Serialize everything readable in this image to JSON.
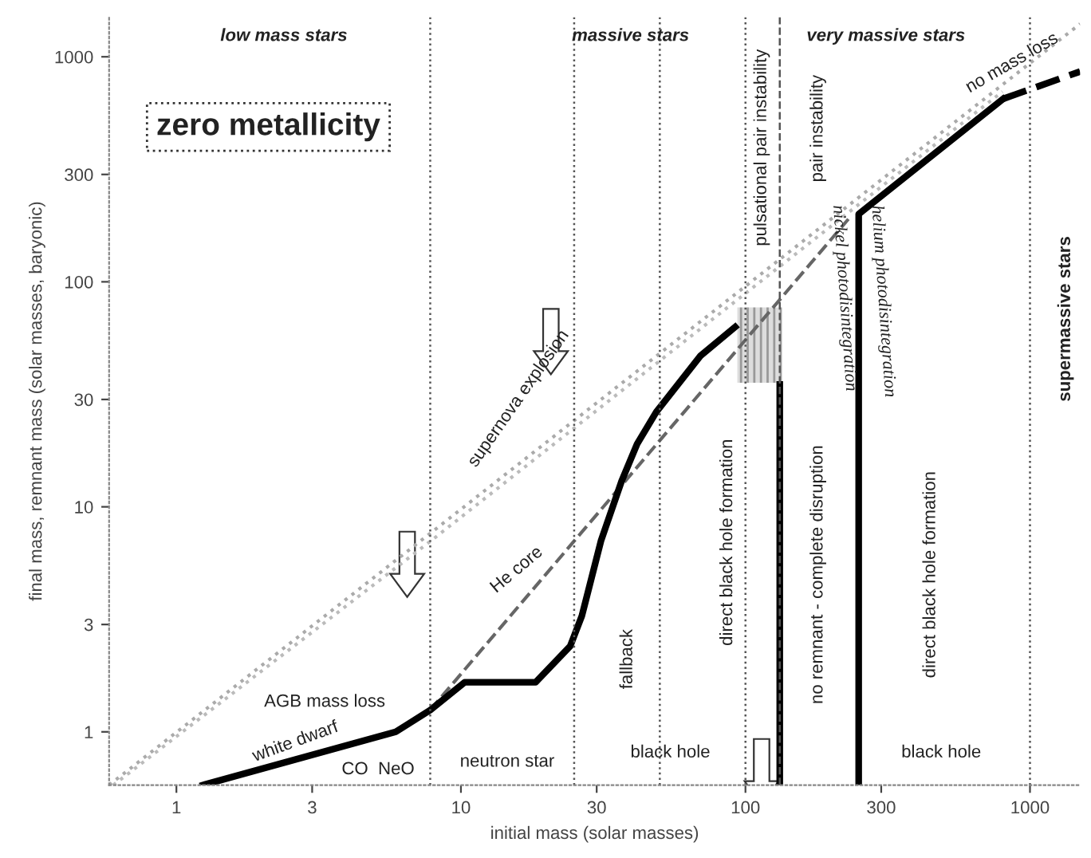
{
  "chart_data": {
    "type": "line",
    "xlabel": "initial mass (solar masses)",
    "ylabel": "final mass, remnant mass (solar masses, baryonic)",
    "log": "xy",
    "xlim": [
      0.58,
      1500
    ],
    "ylim": [
      0.58,
      1500
    ],
    "xticks": [
      1,
      3,
      10,
      30,
      100,
      300,
      1000
    ],
    "yticks": [
      1,
      3,
      10,
      30,
      100,
      300,
      1000
    ],
    "grid": false,
    "series": [
      {
        "x": [
          0.58,
          1500
        ],
        "values": [
          0.58,
          1400
        ],
        "color": "#aaaaaa",
        "line_style": "dotted"
      },
      {
        "x": [
          0.6,
          8,
          90,
          800
        ],
        "values": [
          0.58,
          7.2,
          80,
          700
        ],
        "color": "#bbbbbb",
        "line_style": "dotted"
      },
      {
        "x": [
          7.8,
          230
        ],
        "values": [
          1.25,
          190
        ],
        "color": "#666666",
        "line_style": "dashed"
      },
      {
        "x": [
          1.24,
          5.9,
          7.8,
          10.3,
          18.3,
          24.2,
          26.6,
          31.1,
          36.7,
          41.6,
          48.6,
          69.6,
          92
        ],
        "values": [
          0.58,
          1.0,
          1.25,
          1.66,
          1.66,
          2.4,
          3.27,
          7.1,
          13.0,
          19.0,
          26.4,
          47,
          63
        ],
        "color": "#000000",
        "line_style": "solid"
      },
      {
        "x": [
          132,
          132
        ],
        "values": [
          35,
          0.58
        ],
        "color": "#000000",
        "line_style": "solid"
      },
      {
        "x": [
          250,
          250,
          804
        ],
        "values": [
          0.58,
          200,
          650
        ],
        "color": "#000000",
        "line_style": "solid"
      },
      {
        "x": [
          804,
          1500
        ],
        "values": [
          650,
          860
        ],
        "color": "#000000",
        "line_style": "dashed"
      }
    ],
    "ref_lines": [
      {
        "axis": "x",
        "value": 7.8,
        "line_style": "dotted"
      },
      {
        "axis": "x",
        "value": 25,
        "line_style": "dotted"
      },
      {
        "axis": "x",
        "value": 50,
        "line_style": "dotted"
      },
      {
        "axis": "x",
        "value": 100,
        "line_style": "dotted"
      },
      {
        "axis": "x",
        "value": 132,
        "line_style": "dashed"
      },
      {
        "axis": "x",
        "value": 1000,
        "line_style": "dotted"
      }
    ],
    "annotations": [
      "low mass stars",
      "massive stars",
      "very massive stars",
      "zero metallicity",
      "AGB mass loss",
      "white dwarf",
      "CO  NeO",
      "neutron star",
      "black hole",
      "fallback",
      "direct black hole formation",
      "no remnant - complete disruption",
      "direct black hole formation",
      "black hole",
      "supermassive stars",
      "pulsational pair instability",
      "pair instability",
      "nickel photodisintegration",
      "helium photodisintegration",
      "supernova explosion",
      "He core",
      "no mass loss"
    ]
  }
}
